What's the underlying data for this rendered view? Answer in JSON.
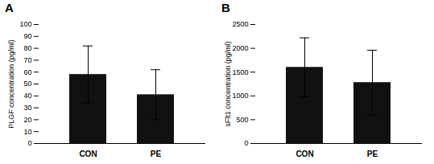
{
  "chart_data": [
    {
      "type": "bar",
      "title": "A",
      "categories": [
        "CON",
        "PE"
      ],
      "values": [
        58,
        41
      ],
      "errors": [
        24,
        21
      ],
      "ylabel": "PLGF concentration (pg/ml)",
      "color": "#111111",
      "ylim": [
        0,
        100
      ],
      "yticks": [
        0,
        10,
        20,
        30,
        40,
        50,
        60,
        70,
        80,
        90,
        100
      ]
    },
    {
      "type": "bar",
      "title": "B",
      "categories": [
        "CON",
        "PE"
      ],
      "values": [
        1600,
        1280
      ],
      "errors": [
        620,
        680
      ],
      "ylabel": "sFlt1 concentration (pg/ml)",
      "color": "#111111",
      "ylim": [
        0,
        2500
      ],
      "yticks": [
        0,
        500,
        1000,
        1500,
        2000,
        2500
      ]
    }
  ]
}
